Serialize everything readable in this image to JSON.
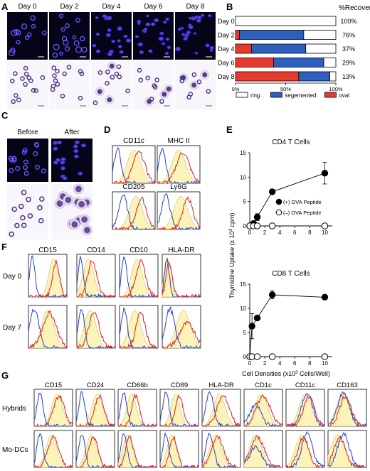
{
  "panels": {
    "A": {
      "letter": "A",
      "columns": [
        "Day 0",
        "Day 2",
        "Day 4",
        "Day 6",
        "Day 8"
      ]
    },
    "B": {
      "letter": "B",
      "header": "%Recovery",
      "rows": [
        "Day 0",
        "Day 2",
        "Day 4",
        "Day 6",
        "Day 8"
      ],
      "recovery": [
        "100%",
        "76%",
        "37%",
        "29%",
        "13%"
      ],
      "ticks": [
        "0%",
        "50%",
        "100%"
      ],
      "legend": [
        {
          "label": "ring",
          "color": "#ffffff"
        },
        {
          "label": "segemented",
          "color": "#2f5fbd"
        },
        {
          "label": "oval",
          "color": "#e53b2f"
        }
      ]
    },
    "C": {
      "letter": "C",
      "columns": [
        "Before",
        "After"
      ]
    },
    "D": {
      "letter": "D",
      "markers": [
        "CD11c",
        "MHC II",
        "CD205",
        "Ly6G"
      ]
    },
    "E": {
      "letter": "E",
      "top_title": "CD4 T Cells",
      "bottom_title": "CD8 T Cells",
      "ylabel_main": "Thymidine Uptake (x 10",
      "ylabel_sup": "3",
      "ylabel_end": " cpm)",
      "xlabel_main": "Cell Densities (x10",
      "xlabel_sup": "3",
      "xlabel_end": " Cells/Well)",
      "yticks": [
        "0",
        "5",
        "10",
        "15"
      ],
      "xticks": [
        "0",
        "2",
        "4",
        "6",
        "8",
        "10"
      ],
      "legend_pos": "(+) OVA Peptide",
      "legend_neg": "(–) OVA Peptide"
    },
    "F": {
      "letter": "F",
      "markers": [
        "CD15",
        "CD14",
        "CD10",
        "HLA-DR"
      ],
      "rows": [
        "Day 0",
        "Day 7"
      ]
    },
    "G": {
      "letter": "G",
      "markers": [
        "CD15",
        "CD24",
        "CD66b",
        "CD89",
        "HLA-DR",
        "CD1c",
        "CD11c",
        "CD163"
      ],
      "rows": [
        "Hybrids",
        "Mo-DCs"
      ]
    }
  },
  "chart_data": [
    {
      "type": "bar",
      "orientation": "horizontal-stacked",
      "categories": [
        "Day 0",
        "Day 2",
        "Day 4",
        "Day 6",
        "Day 8"
      ],
      "series": [
        {
          "name": "oval",
          "values": [
            0,
            4,
            16,
            38,
            63
          ]
        },
        {
          "name": "segemented",
          "values": [
            0,
            64,
            54,
            50,
            31
          ]
        },
        {
          "name": "ring",
          "values": [
            100,
            32,
            30,
            12,
            6
          ]
        }
      ],
      "xlim": [
        0,
        100
      ]
    },
    {
      "type": "line",
      "title": "CD4 T Cells",
      "x": [
        0,
        0.5,
        1,
        3,
        10
      ],
      "series": [
        {
          "name": "(+) OVA Peptide",
          "values": [
            0,
            0.5,
            1.8,
            7,
            10.8
          ],
          "err": [
            0,
            0,
            0.7,
            0.3,
            2.2
          ]
        },
        {
          "name": "(–) OVA Peptide",
          "values": [
            0,
            0,
            0,
            0,
            0
          ]
        }
      ],
      "ylim": [
        0,
        15
      ],
      "xlim": [
        0,
        11
      ]
    },
    {
      "type": "line",
      "title": "CD8 T Cells",
      "x": [
        0,
        0.3,
        1,
        3,
        10
      ],
      "series": [
        {
          "name": "(+) OVA Peptide",
          "values": [
            0,
            6.3,
            8,
            12.8,
            12.3
          ],
          "err": [
            0,
            2.6,
            0,
            0.8,
            0
          ]
        },
        {
          "name": "(–) OVA Peptide",
          "values": [
            0,
            0,
            0,
            0,
            0
          ]
        }
      ],
      "ylim": [
        0,
        15
      ],
      "xlim": [
        0,
        11
      ]
    }
  ]
}
